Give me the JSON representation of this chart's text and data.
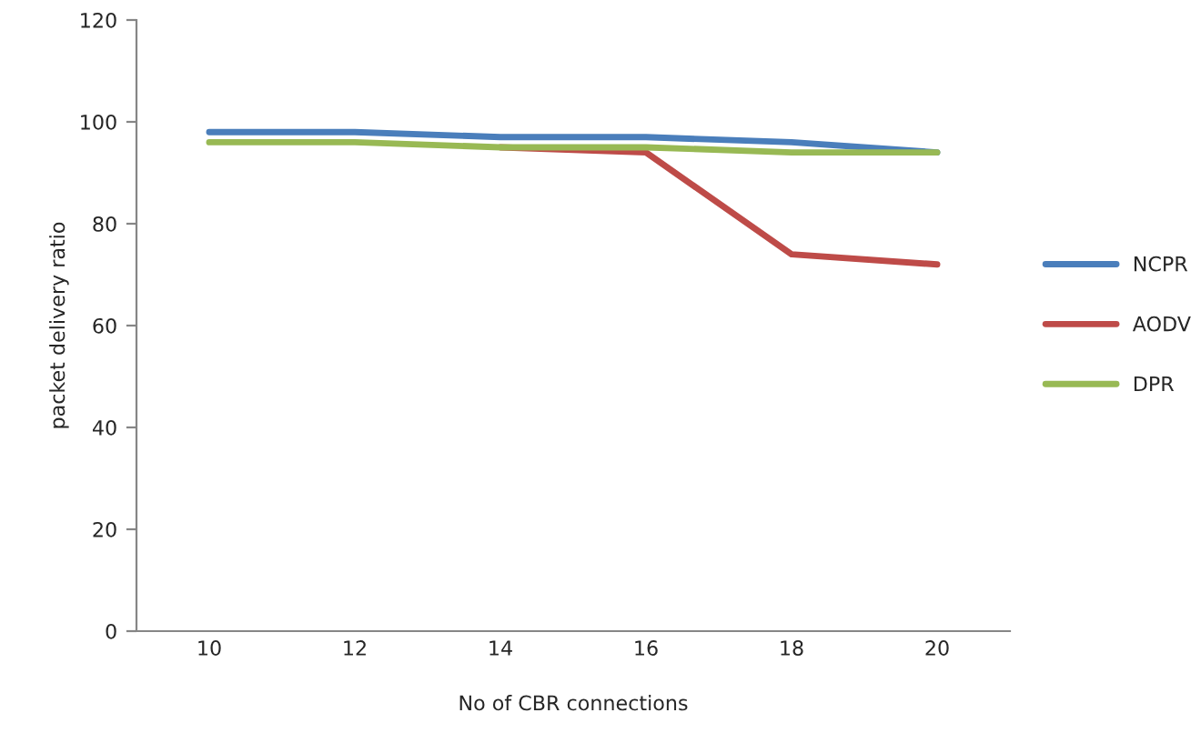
{
  "chart_data": {
    "type": "line",
    "xlabel": "No of CBR connections",
    "ylabel": "packet delivery ratio",
    "categories": [
      "10",
      "12",
      "14",
      "16",
      "18",
      "20"
    ],
    "series": [
      {
        "name": "NCPR",
        "color": "#4a7ebb",
        "values": [
          98,
          98,
          97,
          97,
          96,
          94
        ]
      },
      {
        "name": "AODV",
        "color": "#be4b48",
        "values": [
          null,
          null,
          95,
          94,
          74,
          72
        ]
      },
      {
        "name": "DPR",
        "color": "#98b954",
        "values": [
          96,
          96,
          95,
          95,
          94,
          94
        ]
      }
    ],
    "ylim": [
      0,
      120
    ],
    "yticks": [
      0,
      20,
      40,
      60,
      80,
      100,
      120
    ],
    "grid": false,
    "legend": "right",
    "marker": "none",
    "line_style": "solid"
  }
}
